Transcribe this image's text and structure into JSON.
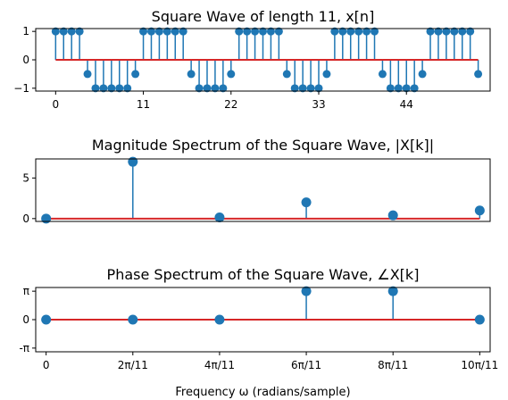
{
  "figure": {
    "colors": {
      "stem": "#1f77b4",
      "baseline": "#d62728",
      "axes": "#000000"
    }
  },
  "chart_data": [
    {
      "type": "stem",
      "title": "Square Wave of length 11, x[n]",
      "xlabel": "",
      "ylabel": "",
      "x_ticks": [
        0,
        11,
        22,
        33,
        44
      ],
      "x_tick_labels": [
        "0",
        "11",
        "22",
        "33",
        "44"
      ],
      "xlim": [
        -2.5,
        54.5
      ],
      "y_ticks": [
        -1,
        0,
        1
      ],
      "y_tick_labels": [
        "−1",
        "0",
        "1"
      ],
      "ylim": [
        -1.1,
        1.1
      ],
      "baseline": 0,
      "grid": false,
      "x": [
        0,
        1,
        2,
        3,
        4,
        5,
        6,
        7,
        8,
        9,
        10,
        11,
        12,
        13,
        14,
        15,
        16,
        17,
        18,
        19,
        20,
        21,
        22,
        23,
        24,
        25,
        26,
        27,
        28,
        29,
        30,
        31,
        32,
        33,
        34,
        35,
        36,
        37,
        38,
        39,
        40,
        41,
        42,
        43,
        44,
        45,
        46,
        47,
        48,
        49,
        50,
        51,
        52,
        53
      ],
      "values": [
        1,
        1,
        1,
        1,
        -0.5,
        -1,
        -1,
        -1,
        -1,
        -1,
        -0.5,
        1,
        1,
        1,
        1,
        1,
        1,
        -0.5,
        -1,
        -1,
        -1,
        -1,
        -0.5,
        1,
        1,
        1,
        1,
        1,
        1,
        -0.5,
        -1,
        -1,
        -1,
        -1,
        -0.5,
        1,
        1,
        1,
        1,
        1,
        1,
        -0.5,
        -1,
        -1,
        -1,
        -1,
        -0.5,
        1,
        1,
        1,
        1,
        1,
        1,
        -0.5
      ]
    },
    {
      "type": "stem",
      "title": "Magnitude Spectrum of the Square Wave, |X[k]|",
      "xlabel": "",
      "ylabel": "",
      "x": [
        0,
        1,
        2,
        3,
        4,
        5
      ],
      "values": [
        0,
        7,
        0.15,
        2,
        0.4,
        1
      ],
      "xlim": [
        -0.12,
        5.12
      ],
      "y_ticks": [
        0,
        5
      ],
      "y_tick_labels": [
        "0",
        "5"
      ],
      "ylim": [
        -0.35,
        7.35
      ],
      "baseline": 0,
      "grid": false
    },
    {
      "type": "stem",
      "title": "Phase Spectrum of the Square Wave, ∠X[k]",
      "xlabel": "Frequency ω (radians/sample)",
      "ylabel": "",
      "x": [
        0,
        1,
        2,
        3,
        4,
        5
      ],
      "values": [
        0,
        0,
        0,
        3.14159,
        3.14159,
        0
      ],
      "x_tick_labels": [
        "0",
        "2π/11",
        "4π/11",
        "6π/11",
        "8π/11",
        "10π/11"
      ],
      "xlim": [
        -0.12,
        5.12
      ],
      "y_ticks": [
        3.14159,
        0,
        -3.14159
      ],
      "y_tick_labels": [
        "π",
        "0",
        "-π"
      ],
      "ylim": [
        -3.55,
        3.55
      ],
      "baseline": 0,
      "grid": false
    }
  ]
}
